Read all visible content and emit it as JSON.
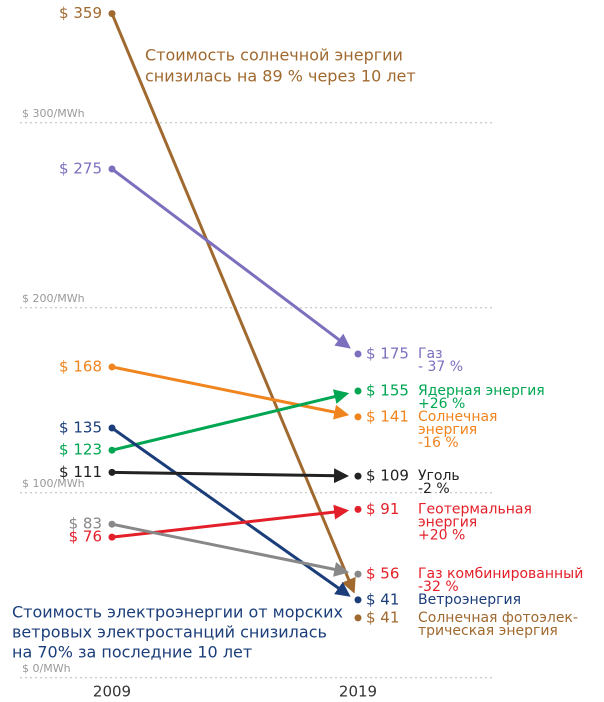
{
  "chart_data": {
    "type": "slope",
    "categories": [
      "2009",
      "2019"
    ],
    "ylim": [
      0,
      359
    ],
    "yticks": [
      {
        "value": 0,
        "label": "$ 0/MWh"
      },
      {
        "value": 100,
        "label": "$ 100/MWh"
      },
      {
        "value": 200,
        "label": "$ 200/MWh"
      },
      {
        "value": 300,
        "label": "$ 300/MWh"
      }
    ],
    "grid": true,
    "annotations": [
      {
        "lines": [
          "Стоимость солнечной энергии",
          "снизилась на 89 % через 10 лет"
        ],
        "color": "#a0692f"
      },
      {
        "lines": [
          "Стоимость электроэнергии от морских",
          "ветровых электростанций снизилась",
          "на 70% за последние 10 лет"
        ],
        "color": "#1b3e7a"
      }
    ],
    "series": [
      {
        "name": [
          "Солнечная фотоэлек-",
          "трическая энергия"
        ],
        "change": null,
        "color": "#a0692f",
        "label_color": "#a0692f",
        "values": [
          359,
          41
        ],
        "value_labels": [
          "$ 359",
          "$ 41"
        ]
      },
      {
        "name": [
          "Газ"
        ],
        "change": "- 37 %",
        "color": "#7b6fbe",
        "label_color": "#7b6fbe",
        "values": [
          275,
          175
        ],
        "value_labels": [
          "$ 275",
          "$ 175"
        ]
      },
      {
        "name": [
          "Солнечная",
          "энергия"
        ],
        "change": "-16 %",
        "color": "#f0841e",
        "label_color": "#f0841e",
        "values": [
          168,
          141
        ],
        "value_labels": [
          "$ 168",
          "$ 141"
        ]
      },
      {
        "name": [
          "Ядерная энергия"
        ],
        "change": "+26 %",
        "color": "#00a651",
        "label_color": "#00a651",
        "values": [
          123,
          155
        ],
        "value_labels": [
          "$ 123",
          "$ 155"
        ]
      },
      {
        "name": [
          "Ветроэнергия"
        ],
        "change": null,
        "color": "#1b3e7a",
        "label_color": "#1b3e7a",
        "values": [
          135,
          41
        ],
        "value_labels": [
          "$ 135",
          "$ 41"
        ]
      },
      {
        "name": [
          "Уголь"
        ],
        "change": "-2 %",
        "color": "#222222",
        "label_color": "#222222",
        "values": [
          111,
          109
        ],
        "value_labels": [
          "$ 111",
          "$ 109"
        ]
      },
      {
        "name": [
          "Геотермальная",
          "энергия"
        ],
        "change": "+20 %",
        "color": "#e3202a",
        "label_color": "#e3202a",
        "values": [
          76,
          91
        ],
        "value_labels": [
          "$ 76",
          "$ 91"
        ]
      },
      {
        "name": [
          "Газ комбинированный"
        ],
        "change": "-32 %",
        "color": "#888888",
        "label_color": "#e3202a",
        "values": [
          83,
          56
        ],
        "value_labels": [
          "$ 83",
          "$ 56"
        ]
      }
    ]
  }
}
